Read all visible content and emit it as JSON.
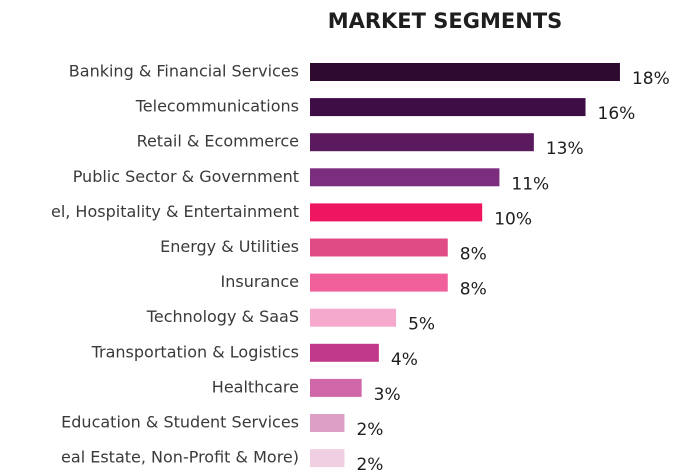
{
  "chart_data": {
    "type": "barh",
    "title": "MARKET SEGMENTS",
    "categories": [
      "Banking & Financial Services",
      "Telecommunications",
      "Retail & Ecommerce",
      "Public Sector & Government",
      "el, Hospitality & Entertainment",
      "Energy & Utilities",
      "Insurance",
      "Technology & SaaS",
      "Transportation & Logistics",
      "Healthcare",
      "Education & Student Services",
      "eal Estate, Non-Profit & More)"
    ],
    "values": [
      18,
      16,
      13,
      11,
      10,
      8,
      8,
      5,
      4,
      3,
      2,
      2
    ],
    "value_labels": [
      "18%",
      "16%",
      "13%",
      "11%",
      "10%",
      "8%",
      "8%",
      "5%",
      "4%",
      "3%",
      "2%",
      "2%"
    ],
    "colors": [
      "#2d0a2e",
      "#3e0d45",
      "#5c1a5e",
      "#7b2d7e",
      "#ee1660",
      "#e04b86",
      "#f0609a",
      "#f5a9cc",
      "#c0398a",
      "#d067a8",
      "#dc9fc6",
      "#f0cfe3"
    ]
  }
}
